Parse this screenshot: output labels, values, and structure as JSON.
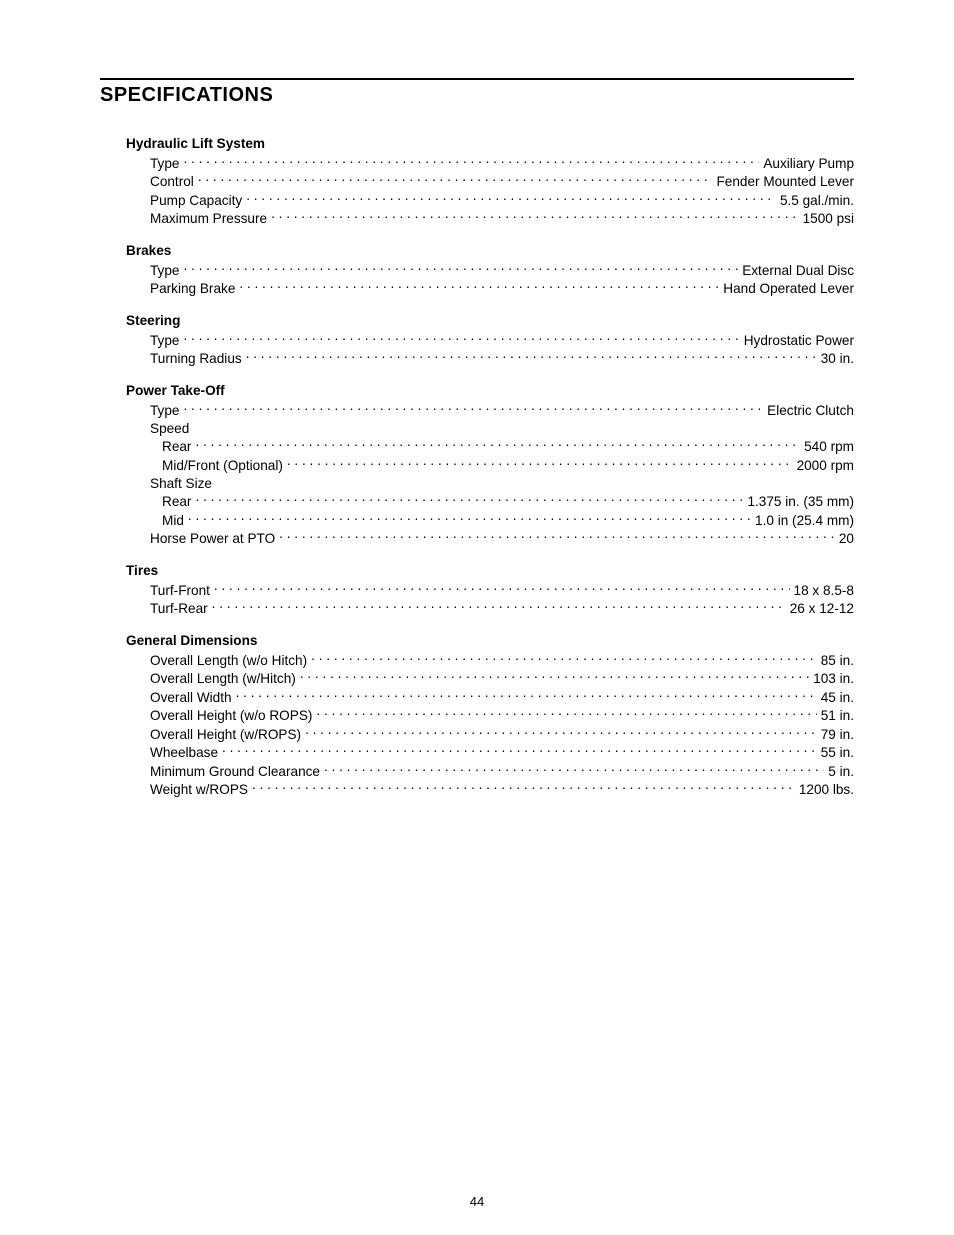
{
  "page": {
    "title": "SPECIFICATIONS",
    "number": "44"
  },
  "colors": {
    "text": "#000000",
    "background": "#ffffff",
    "rule": "#000000"
  },
  "typography": {
    "title_fontsize_pt": 15,
    "body_fontsize_pt": 10,
    "font_family": "Arial"
  },
  "sections": [
    {
      "heading": "Hydraulic Lift System",
      "rows": [
        {
          "label": "Type",
          "value": "Auxiliary Pump",
          "indent": 1
        },
        {
          "label": "Control",
          "value": "Fender Mounted Lever",
          "indent": 1
        },
        {
          "label": "Pump Capacity",
          "value": "5.5 gal./min.",
          "indent": 1
        },
        {
          "label": "Maximum Pressure",
          "value": "1500 psi",
          "indent": 1
        }
      ]
    },
    {
      "heading": "Brakes",
      "rows": [
        {
          "label": "Type",
          "value": "External Dual Disc",
          "indent": 1
        },
        {
          "label": "Parking Brake",
          "value": "Hand Operated Lever",
          "indent": 1
        }
      ]
    },
    {
      "heading": "Steering",
      "rows": [
        {
          "label": "Type",
          "value": "Hydrostatic Power",
          "indent": 1
        },
        {
          "label": "Turning Radius",
          "value": "30 in.",
          "indent": 1
        }
      ]
    },
    {
      "heading": "Power Take-Off",
      "rows": [
        {
          "label": "Type",
          "value": "Electric Clutch",
          "indent": 1
        },
        {
          "sublabel": "Speed",
          "indent": 1
        },
        {
          "label": "Rear",
          "value": "540 rpm",
          "indent": 2
        },
        {
          "label": "Mid/Front (Optional)",
          "value": "2000 rpm",
          "indent": 2
        },
        {
          "sublabel": "Shaft Size",
          "indent": 1
        },
        {
          "label": "Rear",
          "value": "1.375 in. (35 mm)",
          "indent": 2
        },
        {
          "label": "Mid",
          "value": "1.0 in (25.4 mm)",
          "indent": 2
        },
        {
          "label": "Horse Power at PTO",
          "value": "20",
          "indent": 1
        }
      ]
    },
    {
      "heading": "Tires",
      "rows": [
        {
          "label": "Turf-Front",
          "value": "18 x 8.5-8",
          "indent": 1
        },
        {
          "label": "Turf-Rear",
          "value": "26 x 12-12",
          "indent": 1
        }
      ]
    },
    {
      "heading": "General Dimensions",
      "rows": [
        {
          "label": "Overall Length (w/o Hitch)",
          "value": "85 in.",
          "indent": 1
        },
        {
          "label": "Overall Length (w/Hitch)",
          "value": "103 in.",
          "indent": 1
        },
        {
          "label": "Overall Width",
          "value": "45 in.",
          "indent": 1
        },
        {
          "label": "Overall Height (w/o ROPS)",
          "value": "51 in.",
          "indent": 1
        },
        {
          "label": "Overall Height (w/ROPS)",
          "value": "79 in.",
          "indent": 1
        },
        {
          "label": "Wheelbase",
          "value": "55 in.",
          "indent": 1
        },
        {
          "label": "Minimum Ground Clearance",
          "value": "5 in.",
          "indent": 1
        },
        {
          "label": "Weight w/ROPS",
          "value": "1200 lbs.",
          "indent": 1
        }
      ]
    }
  ]
}
